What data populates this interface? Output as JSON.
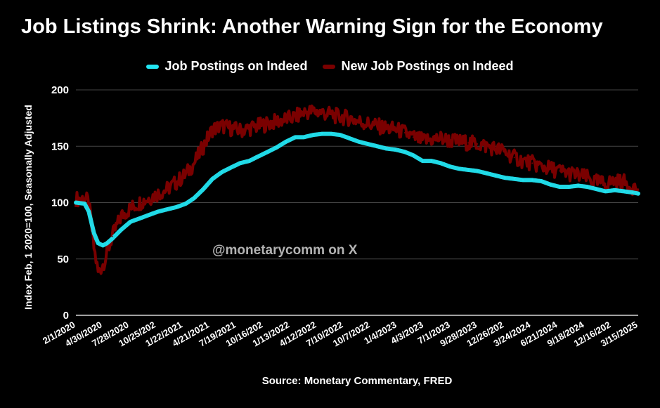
{
  "chart_data": {
    "type": "line",
    "title": "Job Listings Shrink: Another Warning Sign for the Economy",
    "ylabel": "Index Feb, 1 2020=100, Seasonally Adjusted",
    "xlabel": "",
    "source": "Source: Monetary Commentary, FRED",
    "watermark": "@monetarycomm on X",
    "ylim": [
      0,
      200
    ],
    "yticks": [
      0,
      50,
      100,
      150,
      200
    ],
    "xticks": [
      "2/1/2020",
      "4/30/2020",
      "7/28/2020",
      "10/25/202",
      "1/22/2021",
      "4/21/2021",
      "7/19/2021",
      "10/16/202",
      "1/13/2022",
      "4/12/2022",
      "7/10/2022",
      "10/7/2022",
      "1/4/2023",
      "4/3/2023",
      "7/1/2023",
      "9/28/2023",
      "12/26/202",
      "3/24/2024",
      "6/21/2024",
      "9/18/2024",
      "12/16/202",
      "3/15/2025"
    ],
    "grid": true,
    "legend_position": "top",
    "series": [
      {
        "name": "Job Postings on Indeed",
        "color": "#22e5f2",
        "x": [
          "2020-02-01",
          "2020-03-01",
          "2020-03-15",
          "2020-04-01",
          "2020-04-15",
          "2020-05-01",
          "2020-05-15",
          "2020-06-01",
          "2020-07-01",
          "2020-08-01",
          "2020-09-01",
          "2020-10-01",
          "2020-11-01",
          "2020-12-01",
          "2021-01-01",
          "2021-02-01",
          "2021-03-01",
          "2021-04-01",
          "2021-05-01",
          "2021-06-01",
          "2021-07-01",
          "2021-08-01",
          "2021-09-01",
          "2021-10-01",
          "2021-11-01",
          "2021-12-01",
          "2022-01-01",
          "2022-02-01",
          "2022-03-01",
          "2022-04-01",
          "2022-05-01",
          "2022-06-01",
          "2022-07-01",
          "2022-08-01",
          "2022-09-01",
          "2022-10-01",
          "2022-11-01",
          "2022-12-01",
          "2023-01-01",
          "2023-02-01",
          "2023-03-01",
          "2023-04-01",
          "2023-05-01",
          "2023-06-01",
          "2023-07-01",
          "2023-08-01",
          "2023-09-01",
          "2023-10-01",
          "2023-11-01",
          "2023-12-01",
          "2024-01-01",
          "2024-02-01",
          "2024-03-01",
          "2024-04-01",
          "2024-05-01",
          "2024-06-01",
          "2024-07-01",
          "2024-08-01",
          "2024-09-01",
          "2024-10-01",
          "2024-11-01",
          "2024-12-01",
          "2025-01-01",
          "2025-02-01",
          "2025-03-01",
          "2025-03-20"
        ],
        "values": [
          100,
          99,
          92,
          73,
          64,
          62,
          64,
          68,
          76,
          83,
          86,
          89,
          92,
          94,
          96,
          99,
          104,
          112,
          121,
          127,
          131,
          135,
          137,
          141,
          145,
          149,
          154,
          158,
          158,
          160,
          161,
          161,
          160,
          157,
          154,
          152,
          150,
          148,
          147,
          145,
          142,
          137,
          137,
          135,
          132,
          130,
          129,
          128,
          126,
          124,
          122,
          121,
          120,
          120,
          119,
          116,
          114,
          114,
          115,
          114,
          112,
          110,
          111,
          110,
          109,
          108
        ]
      },
      {
        "name": "New Job Postings on Indeed",
        "color": "#7a0000",
        "x": [
          "2020-02-01",
          "2020-03-01",
          "2020-03-15",
          "2020-04-01",
          "2020-04-15",
          "2020-05-01",
          "2020-05-15",
          "2020-06-01",
          "2020-07-01",
          "2020-08-01",
          "2020-09-01",
          "2020-10-01",
          "2020-11-01",
          "2020-12-01",
          "2021-01-01",
          "2021-02-01",
          "2021-03-01",
          "2021-04-01",
          "2021-05-01",
          "2021-06-01",
          "2021-07-01",
          "2021-08-01",
          "2021-09-01",
          "2021-10-01",
          "2021-11-01",
          "2021-12-01",
          "2022-01-01",
          "2022-02-01",
          "2022-03-01",
          "2022-04-01",
          "2022-05-01",
          "2022-06-01",
          "2022-07-01",
          "2022-08-01",
          "2022-09-01",
          "2022-10-01",
          "2022-11-01",
          "2022-12-01",
          "2023-01-01",
          "2023-02-01",
          "2023-03-01",
          "2023-04-01",
          "2023-05-01",
          "2023-06-01",
          "2023-07-01",
          "2023-08-01",
          "2023-09-01",
          "2023-10-01",
          "2023-11-01",
          "2023-12-01",
          "2024-01-01",
          "2024-02-01",
          "2024-03-01",
          "2024-04-01",
          "2024-05-01",
          "2024-06-01",
          "2024-07-01",
          "2024-08-01",
          "2024-09-01",
          "2024-10-01",
          "2024-11-01",
          "2024-12-01",
          "2025-01-01",
          "2025-02-01",
          "2025-03-01",
          "2025-03-20"
        ],
        "values": [
          103,
          104,
          100,
          60,
          38,
          45,
          55,
          70,
          88,
          95,
          100,
          104,
          108,
          112,
          118,
          125,
          135,
          150,
          165,
          168,
          166,
          164,
          166,
          168,
          170,
          172,
          174,
          176,
          180,
          181,
          180,
          178,
          176,
          175,
          172,
          170,
          168,
          166,
          165,
          162,
          158,
          155,
          156,
          157,
          155,
          154,
          153,
          152,
          150,
          148,
          145,
          140,
          137,
          135,
          132,
          130,
          128,
          126,
          124,
          122,
          118,
          117,
          119,
          118,
          114,
          112
        ]
      }
    ]
  }
}
